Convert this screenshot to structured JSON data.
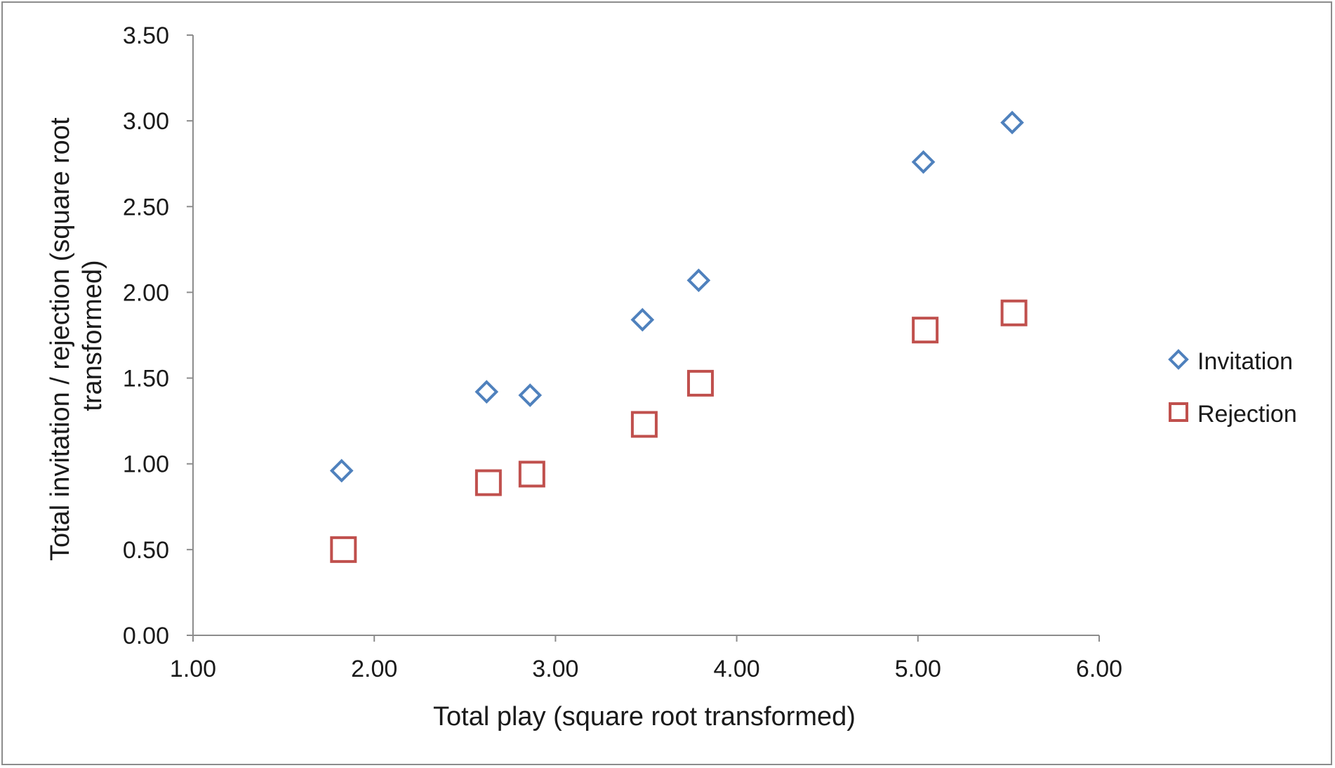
{
  "chart_data": {
    "type": "scatter",
    "title": "",
    "xlabel": "Total play (square root transformed)",
    "ylabel_lines": [
      "Total invitation / rejection (square root",
      "transformed)"
    ],
    "xlim": [
      1.0,
      6.0
    ],
    "ylim": [
      0.0,
      3.5
    ],
    "x_ticks": [
      "1.00",
      "2.00",
      "3.00",
      "4.00",
      "5.00",
      "6.00"
    ],
    "y_ticks": [
      "0.00",
      "0.50",
      "1.00",
      "1.50",
      "2.00",
      "2.50",
      "3.00",
      "3.50"
    ],
    "grid": false,
    "legend_position": "right",
    "series": [
      {
        "name": "Invitation",
        "marker": "diamond",
        "color": "#4f81bd",
        "points": [
          {
            "x": 1.82,
            "y": 0.96
          },
          {
            "x": 2.62,
            "y": 1.42
          },
          {
            "x": 2.86,
            "y": 1.4
          },
          {
            "x": 3.48,
            "y": 1.84
          },
          {
            "x": 3.79,
            "y": 2.07
          },
          {
            "x": 5.03,
            "y": 2.76
          },
          {
            "x": 5.52,
            "y": 2.99
          }
        ]
      },
      {
        "name": "Rejection",
        "marker": "square",
        "color": "#c0504d",
        "points": [
          {
            "x": 1.83,
            "y": 0.5
          },
          {
            "x": 2.63,
            "y": 0.89
          },
          {
            "x": 2.87,
            "y": 0.94
          },
          {
            "x": 3.49,
            "y": 1.23
          },
          {
            "x": 3.8,
            "y": 1.47
          },
          {
            "x": 5.04,
            "y": 1.78
          },
          {
            "x": 5.53,
            "y": 1.88
          }
        ]
      }
    ]
  }
}
